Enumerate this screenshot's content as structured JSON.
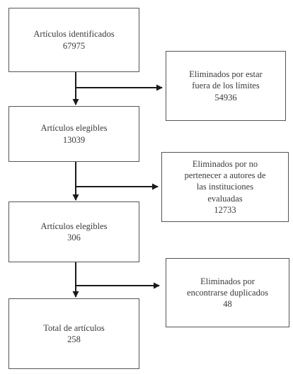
{
  "flow": {
    "main": [
      {
        "label": "Artículos identificados",
        "count": "67975"
      },
      {
        "label": "Artículos elegibles",
        "count": "13039"
      },
      {
        "label": "Artículos elegibles",
        "count": "306"
      },
      {
        "label": "Total de artículos",
        "count": "258"
      }
    ],
    "excluded": [
      {
        "lines": [
          "Eliminados por estar",
          "fuera de los límites"
        ],
        "count": "54936"
      },
      {
        "lines": [
          "Eliminados por no",
          "pertenecer a autores de",
          "las instituciones",
          "evaluadas"
        ],
        "count": "12733"
      },
      {
        "lines": [
          "Eliminados por",
          "encontrarse duplicados"
        ],
        "count": "48"
      }
    ]
  },
  "colors": {
    "border": "#555555",
    "text": "#3a3a3a",
    "line": "#1a1a1a"
  }
}
